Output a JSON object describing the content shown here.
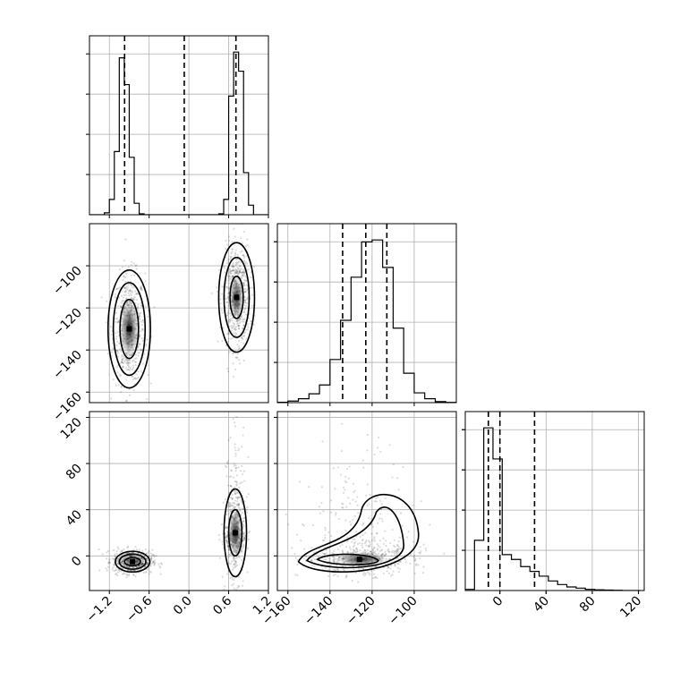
{
  "chart_data": {
    "type": "corner",
    "title": "",
    "variables": [
      {
        "label": "",
        "range": [
          -1.5,
          1.2
        ],
        "ticks": [
          "-1.2",
          "-0.6",
          "0.0",
          "0.6",
          "1.2"
        ],
        "tick_values": [
          -1.2,
          -0.6,
          0.0,
          0.6,
          1.2
        ]
      },
      {
        "label": "",
        "range": [
          -165,
          -80
        ],
        "ticks": [
          "-160",
          "-140",
          "-120",
          "-100"
        ],
        "tick_values": [
          -160,
          -140,
          -120,
          -100
        ]
      },
      {
        "label": "",
        "range": [
          -30,
          125
        ],
        "ticks": [
          "0",
          "40",
          "80",
          "120"
        ],
        "tick_values": [
          0,
          40,
          80,
          120
        ]
      }
    ],
    "histograms": [
      {
        "variable": 0,
        "bin_edges": [
          -1.5,
          -1.425,
          -1.35,
          -1.275,
          -1.2,
          -1.125,
          -1.05,
          -0.975,
          -0.9,
          -0.825,
          -0.75,
          -0.675,
          -0.6,
          -0.525,
          -0.45,
          -0.375,
          -0.3,
          -0.225,
          -0.15,
          -0.075,
          0.0,
          0.075,
          0.15,
          0.225,
          0.3,
          0.375,
          0.45,
          0.525,
          0.6,
          0.675,
          0.75,
          0.825,
          0.9,
          0.975,
          1.05,
          1.125,
          1.2
        ],
        "counts": [
          0,
          0,
          0,
          10,
          80,
          330,
          820,
          680,
          300,
          60,
          5,
          0,
          0,
          0,
          0,
          0,
          0,
          0,
          0,
          0,
          0,
          0,
          0,
          0,
          0,
          0,
          5,
          80,
          620,
          850,
          750,
          220,
          50,
          0,
          0,
          0
        ],
        "quantiles": [
          -0.97,
          -0.07,
          0.71
        ]
      },
      {
        "variable": 1,
        "bin_edges": [
          -165,
          -160,
          -155,
          -150,
          -145,
          -140,
          -135,
          -130,
          -125,
          -120,
          -115,
          -110,
          -105,
          -100,
          -95,
          -90,
          -85,
          -80
        ],
        "counts": [
          2,
          8,
          20,
          45,
          90,
          220,
          420,
          640,
          820,
          830,
          690,
          380,
          150,
          50,
          20,
          5,
          1
        ],
        "quantiles": [
          -134,
          -123,
          -113
        ]
      },
      {
        "variable": 2,
        "bin_edges": [
          -30,
          -22,
          -14,
          -6,
          2,
          10,
          18,
          26,
          34,
          42,
          50,
          58,
          66,
          74,
          82,
          90,
          98,
          106,
          114,
          122
        ],
        "counts": [
          5,
          210,
          680,
          550,
          150,
          130,
          100,
          80,
          60,
          40,
          25,
          15,
          10,
          5,
          3,
          2,
          1,
          0,
          0
        ],
        "quantiles": [
          -10,
          0,
          30
        ]
      }
    ],
    "scatter_panels": [
      {
        "x_variable": 0,
        "y_variable": 1,
        "clusters": [
          {
            "center": [
              -0.9,
              -130
            ],
            "spread": [
              0.12,
              13
            ],
            "contours": [
              [
                0.14,
                14
              ],
              [
                0.24,
                22
              ],
              [
                0.32,
                28
              ]
            ]
          },
          {
            "center": [
              0.72,
              -115
            ],
            "spread": [
              0.1,
              12
            ],
            "contours": [
              [
                0.1,
                10
              ],
              [
                0.19,
                19
              ],
              [
                0.27,
                26
              ]
            ]
          }
        ]
      },
      {
        "x_variable": 0,
        "y_variable": 2,
        "clusters": [
          {
            "center": [
              -0.85,
              -5
            ],
            "spread": [
              0.15,
              5
            ],
            "contours": [
              [
                0.12,
                3.5
              ],
              [
                0.2,
                6.5
              ],
              [
                0.26,
                9
              ]
            ]
          },
          {
            "center": [
              0.7,
              20
            ],
            "spread": [
              0.08,
              25
            ],
            "contours": [
              [
                0.1,
                20
              ],
              [
                0.17,
                38
              ]
            ]
          }
        ]
      },
      {
        "x_variable": 1,
        "y_variable": 2,
        "clusters": [
          {
            "center": [
              -125,
              -3
            ],
            "spread": [
              13,
              15
            ],
            "contours": [
              [
                -145,
                -132,
                0.55,
                0.6
              ],
              [
                -149,
                -106,
                0.7,
                0.75
              ],
              [
                -149,
                -101,
                0.75,
                0.8
              ]
            ]
          }
        ]
      }
    ],
    "grid": true,
    "style": {
      "line_color": "#000000",
      "point_color": "#000000",
      "grid_color": "#b0b0b0",
      "quantile_dash": "dashed"
    }
  }
}
